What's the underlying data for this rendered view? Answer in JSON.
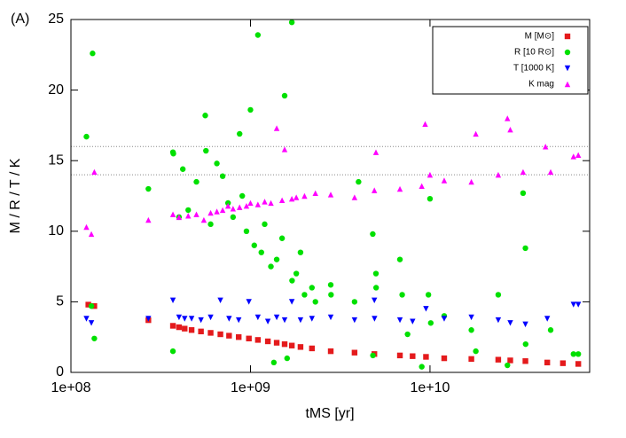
{
  "chart_data": {
    "type": "scatter",
    "title": "(A)",
    "xlabel": "tMS [yr]",
    "ylabel": "M / R / T / K",
    "xlog": true,
    "xlim": [
      100000000,
      77500000000
    ],
    "ylim": [
      0,
      25
    ],
    "xticks": [
      {
        "value": 100000000,
        "label": "1e+08"
      },
      {
        "value": 1000000000,
        "label": "1e+09"
      },
      {
        "value": 10000000000,
        "label": "1e+10"
      }
    ],
    "yticks": [
      0,
      5,
      10,
      15,
      20,
      25
    ],
    "hlines": [
      14,
      16
    ],
    "legend": "upper right",
    "series": [
      {
        "name": "M [M⊙]",
        "color": "#e41a1c",
        "marker": "square",
        "x": [
          125000000,
          135000000,
          270000000,
          370000000,
          400000000,
          430000000,
          470000000,
          530000000,
          600000000,
          680000000,
          760000000,
          860000000,
          980000000,
          1100000000,
          1250000000,
          1400000000,
          1550000000,
          1700000000,
          1900000000,
          2200000000,
          2800000000,
          3800000000,
          4900000000,
          6800000000,
          8000000000,
          9500000000,
          12000000000,
          17000000000,
          24000000000,
          28000000000,
          34000000000,
          45000000000,
          55000000000,
          67000000000
        ],
        "y": [
          4.8,
          4.7,
          3.7,
          3.3,
          3.2,
          3.1,
          3.0,
          2.9,
          2.8,
          2.7,
          2.6,
          2.5,
          2.4,
          2.3,
          2.2,
          2.1,
          2.0,
          1.9,
          1.8,
          1.7,
          1.5,
          1.4,
          1.3,
          1.2,
          1.15,
          1.1,
          1.0,
          0.95,
          0.9,
          0.85,
          0.8,
          0.7,
          0.65,
          0.6
        ]
      },
      {
        "name": "R [10 R⊙]",
        "color": "#00e000",
        "marker": "circle",
        "x": [
          122000000,
          132000000,
          135000000,
          130000000,
          270000000,
          370000000,
          372000000,
          370000000,
          400000000,
          420000000,
          450000000,
          500000000,
          560000000,
          565000000,
          600000000,
          650000000,
          700000000,
          750000000,
          800000000,
          870000000,
          900000000,
          950000000,
          1000000000,
          1050000000,
          1100000000,
          1150000000,
          1200000000,
          1300000000,
          1350000000,
          1400000000,
          1500000000,
          1550000000,
          1600000000,
          1700000000,
          1705000000,
          1800000000,
          1900000000,
          2000000000,
          2200000000,
          2300000000,
          2800000000,
          2810000000,
          3800000000,
          4000000000,
          4800000000,
          4810000000,
          5000000000,
          5010000000,
          6800000000,
          7000000000,
          7500000000,
          9000000000,
          9800000000,
          10000000000,
          10100000000,
          12000000000,
          17000000000,
          18000000000,
          24000000000,
          27000000000,
          33000000000,
          34000000000,
          34100000000,
          47000000000,
          63000000000,
          67000000000
        ],
        "y": [
          16.7,
          22.6,
          2.4,
          4.7,
          13.0,
          15.6,
          15.5,
          1.5,
          11.0,
          14.4,
          11.5,
          13.5,
          18.2,
          15.7,
          10.5,
          14.8,
          13.9,
          12.0,
          11.0,
          16.9,
          12.5,
          10.0,
          18.6,
          9.0,
          23.9,
          8.5,
          10.5,
          7.5,
          0.7,
          8.0,
          9.5,
          19.6,
          1.0,
          24.8,
          6.5,
          7.0,
          8.5,
          5.5,
          6.0,
          5.0,
          6.2,
          5.5,
          5.0,
          13.5,
          9.8,
          1.2,
          7.0,
          6.0,
          8.0,
          5.5,
          2.7,
          0.4,
          5.5,
          12.3,
          3.5,
          4.0,
          3.0,
          1.5,
          5.5,
          0.5,
          12.7,
          8.8,
          2.0,
          3.0,
          1.3,
          1.3
        ]
      },
      {
        "name": "T [1000 K]",
        "color": "#0000ff",
        "marker": "triangle-down",
        "x": [
          122000000,
          130000000,
          270000000,
          370000000,
          400000000,
          430000000,
          470000000,
          530000000,
          600000000,
          680000000,
          760000000,
          860000000,
          980000000,
          1100000000,
          1250000000,
          1400000000,
          1550000000,
          1700000000,
          1900000000,
          2200000000,
          2800000000,
          3800000000,
          4900000000,
          4910000000,
          6800000000,
          8000000000,
          9500000000,
          12000000000,
          17000000000,
          24000000000,
          28000000000,
          34000000000,
          45000000000,
          63000000000,
          67000000000
        ],
        "y": [
          3.8,
          3.5,
          3.8,
          5.1,
          3.9,
          3.8,
          3.8,
          3.7,
          3.9,
          5.1,
          3.8,
          3.7,
          5.0,
          3.9,
          3.6,
          3.9,
          3.7,
          5.0,
          3.7,
          3.8,
          3.9,
          3.7,
          5.1,
          3.8,
          3.7,
          3.6,
          4.5,
          3.8,
          3.9,
          3.7,
          3.5,
          3.4,
          3.8,
          4.8,
          4.8
        ]
      },
      {
        "name": "K mag",
        "color": "#ff00ff",
        "marker": "triangle-up",
        "x": [
          122000000,
          130000000,
          135000000,
          270000000,
          370000000,
          400000000,
          450000000,
          500000000,
          550000000,
          600000000,
          650000000,
          700000000,
          750000000,
          800000000,
          870000000,
          950000000,
          1000000000,
          1100000000,
          1200000000,
          1300000000,
          1400000000,
          1500000000,
          1550000000,
          1700000000,
          1800000000,
          2000000000,
          2300000000,
          2800000000,
          3800000000,
          4900000000,
          5000000000,
          6800000000,
          9000000000,
          9400000000,
          10000000000,
          12000000000,
          17000000000,
          18000000000,
          24000000000,
          27000000000,
          28000000000,
          33000000000,
          44000000000,
          47000000000,
          63000000000,
          67000000000
        ],
        "y": [
          10.3,
          9.8,
          14.2,
          10.8,
          11.2,
          11.0,
          11.1,
          11.2,
          10.8,
          11.3,
          11.4,
          11.5,
          11.8,
          11.6,
          11.7,
          11.8,
          12.0,
          11.9,
          12.1,
          12.0,
          17.3,
          12.2,
          15.8,
          12.3,
          12.4,
          12.5,
          12.7,
          12.6,
          12.4,
          12.9,
          15.6,
          13.0,
          13.2,
          17.6,
          14.0,
          13.6,
          13.5,
          16.9,
          14.0,
          18.0,
          17.2,
          14.2,
          16.0,
          14.2,
          15.3,
          15.4
        ]
      }
    ]
  }
}
